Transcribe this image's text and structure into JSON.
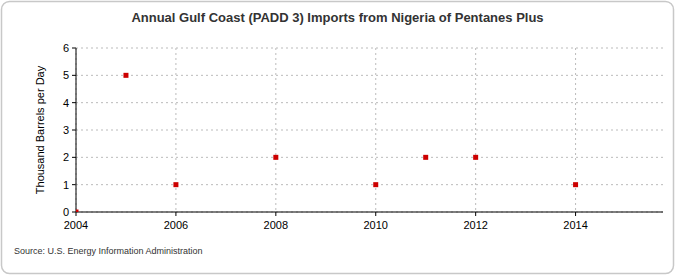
{
  "chart_data": {
    "type": "scatter",
    "title": "Annual Gulf Coast (PADD 3) Imports from Nigeria of Pentanes Plus",
    "y_label": "Thousand Barrels per Day",
    "source": "Source: U.S. Energy Information Administration",
    "x": [
      2004,
      2005,
      2006,
      2008,
      2010,
      2011,
      2012,
      2014
    ],
    "values": [
      0,
      5,
      1,
      2,
      1,
      2,
      2,
      1
    ],
    "color": "#cc0000",
    "marker": "square",
    "xlim": [
      2004,
      2015.75
    ],
    "xticks": [
      2004,
      2006,
      2008,
      2010,
      2012,
      2014
    ],
    "ylim": [
      0,
      6
    ],
    "yticks": [
      0,
      1,
      2,
      3,
      4,
      5,
      6
    ],
    "grid": true
  }
}
